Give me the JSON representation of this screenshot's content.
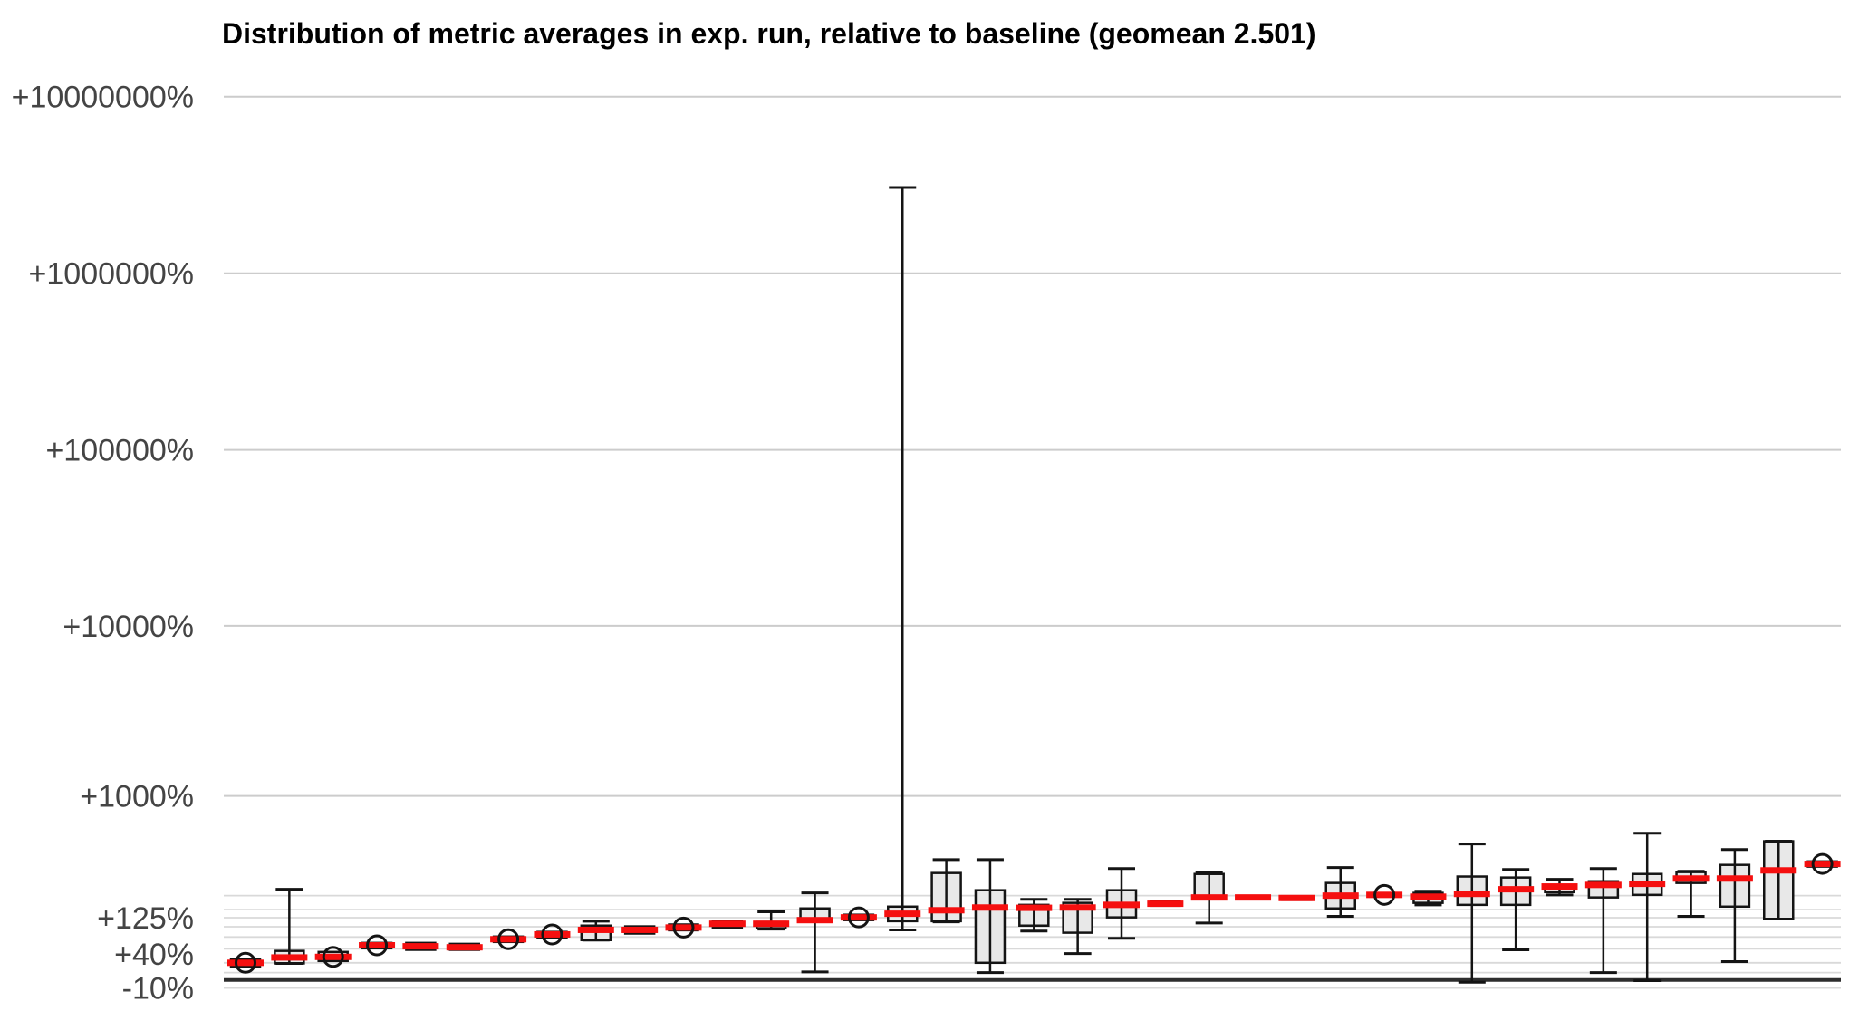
{
  "chart_data": {
    "type": "boxplot",
    "title": "Distribution of metric averages in exp. run, relative to baseline (geomean 2.501)",
    "geomean": 2.501,
    "y_axis": {
      "scale": "log10(1 + pct/100)",
      "unit": "percent change vs baseline",
      "ylim_pct": [
        -15,
        10000000
      ],
      "ticks": [
        {
          "label": "+10000000%",
          "pct": 10000000
        },
        {
          "label": "+1000000%",
          "pct": 1000000
        },
        {
          "label": "+100000%",
          "pct": 100000
        },
        {
          "label": "+10000%",
          "pct": 10000
        },
        {
          "label": "+1000%",
          "pct": 1000
        },
        {
          "label": "+125%",
          "pct": 125
        },
        {
          "label": "+40%",
          "pct": 40
        },
        {
          "label": "-10%",
          "pct": -10
        }
      ],
      "major_grid_pct": [
        10000000,
        1000000,
        100000,
        10000,
        1000
      ],
      "minor_grid_pct": [
        200,
        150,
        125,
        100,
        75,
        50,
        25,
        10,
        -10
      ],
      "baseline_pct": 0
    },
    "x_axis": {
      "labels_visible": false,
      "n_groups": 37
    },
    "series": [
      {
        "median_pct": 25,
        "q1_pct": 19,
        "q3_pct": 31,
        "lo_pct": null,
        "hi_pct": null,
        "circle": true
      },
      {
        "median_pct": 34,
        "q1_pct": 24,
        "q3_pct": 46,
        "lo_pct": 24,
        "hi_pct": 226,
        "circle": false
      },
      {
        "median_pct": 35,
        "q1_pct": 28,
        "q3_pct": 44,
        "lo_pct": null,
        "hi_pct": null,
        "circle": true
      },
      {
        "median_pct": 57,
        "q1_pct": 51,
        "q3_pct": 62,
        "lo_pct": null,
        "hi_pct": null,
        "circle": true
      },
      {
        "median_pct": 55,
        "q1_pct": 48,
        "q3_pct": 62,
        "lo_pct": null,
        "hi_pct": null,
        "circle": false
      },
      {
        "median_pct": 53,
        "q1_pct": 48,
        "q3_pct": 60,
        "lo_pct": null,
        "hi_pct": null,
        "circle": false
      },
      {
        "median_pct": 70,
        "q1_pct": 64,
        "q3_pct": 76,
        "lo_pct": null,
        "hi_pct": null,
        "circle": true
      },
      {
        "median_pct": 81,
        "q1_pct": 74,
        "q3_pct": 87,
        "lo_pct": null,
        "hi_pct": null,
        "circle": true
      },
      {
        "median_pct": 92,
        "q1_pct": 68,
        "q3_pct": 103,
        "lo_pct": 68,
        "hi_pct": 115,
        "circle": false
      },
      {
        "median_pct": 92,
        "q1_pct": 83,
        "q3_pct": 101,
        "lo_pct": null,
        "hi_pct": null,
        "circle": false
      },
      {
        "median_pct": 98,
        "q1_pct": 91,
        "q3_pct": 106,
        "lo_pct": null,
        "hi_pct": null,
        "circle": true
      },
      {
        "median_pct": 108,
        "q1_pct": 98,
        "q3_pct": 115,
        "lo_pct": null,
        "hi_pct": null,
        "circle": false
      },
      {
        "median_pct": 108,
        "q1_pct": 96,
        "q3_pct": 113,
        "lo_pct": 94,
        "hi_pct": 143,
        "circle": false
      },
      {
        "median_pct": 118,
        "q1_pct": 113,
        "q3_pct": 154,
        "lo_pct": 11,
        "hi_pct": 211,
        "circle": false
      },
      {
        "median_pct": 126,
        "q1_pct": 118,
        "q3_pct": 134,
        "lo_pct": null,
        "hi_pct": null,
        "circle": true
      },
      {
        "median_pct": 137,
        "q1_pct": 115,
        "q3_pct": 160,
        "lo_pct": 92,
        "hi_pct": 3060000,
        "circle": false
      },
      {
        "median_pct": 148,
        "q1_pct": 115,
        "q3_pct": 303,
        "lo_pct": 113,
        "hi_pct": 380,
        "circle": false
      },
      {
        "median_pct": 157,
        "q1_pct": 25,
        "q3_pct": 222,
        "lo_pct": 10,
        "hi_pct": 380,
        "circle": false
      },
      {
        "median_pct": 156,
        "q1_pct": 103,
        "q3_pct": 166,
        "lo_pct": 89,
        "hi_pct": 186,
        "circle": false
      },
      {
        "median_pct": 157,
        "q1_pct": 85,
        "q3_pct": 173,
        "lo_pct": 41,
        "hi_pct": 186,
        "circle": false
      },
      {
        "median_pct": 166,
        "q1_pct": 126,
        "q3_pct": 222,
        "lo_pct": 72,
        "hi_pct": 327,
        "circle": false
      },
      {
        "median_pct": 170,
        "q1_pct": 163,
        "q3_pct": 179,
        "lo_pct": null,
        "hi_pct": null,
        "circle": false
      },
      {
        "median_pct": 193,
        "q1_pct": 186,
        "q3_pct": 298,
        "lo_pct": 110,
        "hi_pct": 308,
        "circle": false
      },
      {
        "median_pct": 193,
        "q1_pct": 187,
        "q3_pct": 199,
        "lo_pct": null,
        "hi_pct": null,
        "circle": false
      },
      {
        "median_pct": 191,
        "q1_pct": 184,
        "q3_pct": 198,
        "lo_pct": null,
        "hi_pct": null,
        "circle": false
      },
      {
        "median_pct": 200,
        "q1_pct": 154,
        "q3_pct": 254,
        "lo_pct": 129,
        "hi_pct": 333,
        "circle": false
      },
      {
        "median_pct": 203,
        "q1_pct": 196,
        "q3_pct": 210,
        "lo_pct": null,
        "hi_pct": null,
        "circle": true
      },
      {
        "median_pct": 196,
        "q1_pct": 173,
        "q3_pct": 211,
        "lo_pct": 166,
        "hi_pct": 218,
        "circle": false
      },
      {
        "median_pct": 207,
        "q1_pct": 166,
        "q3_pct": 285,
        "lo_pct": -3,
        "hi_pct": 488,
        "circle": false
      },
      {
        "median_pct": 226,
        "q1_pct": 166,
        "q3_pct": 280,
        "lo_pct": 48,
        "hi_pct": 322,
        "circle": false
      },
      {
        "median_pct": 238,
        "q1_pct": 214,
        "q3_pct": 245,
        "lo_pct": 203,
        "hi_pct": 271,
        "circle": false
      },
      {
        "median_pct": 245,
        "q1_pct": 193,
        "q3_pct": 262,
        "lo_pct": 10,
        "hi_pct": 327,
        "circle": false
      },
      {
        "median_pct": 250,
        "q1_pct": 203,
        "q3_pct": 298,
        "lo_pct": -1,
        "hi_pct": 577,
        "circle": false
      },
      {
        "median_pct": 275,
        "q1_pct": 254,
        "q3_pct": 308,
        "lo_pct": 129,
        "hi_pct": 312,
        "circle": false
      },
      {
        "median_pct": 275,
        "q1_pct": 160,
        "q3_pct": 348,
        "lo_pct": 27,
        "hi_pct": 447,
        "circle": false
      },
      {
        "median_pct": 317,
        "q1_pct": 121,
        "q3_pct": 510,
        "lo_pct": 121,
        "hi_pct": 510,
        "circle": false
      },
      {
        "median_pct": 354,
        "q1_pct": 338,
        "q3_pct": 369,
        "lo_pct": null,
        "hi_pct": null,
        "circle": true
      }
    ]
  },
  "colors": {
    "median": "#f50f0f",
    "box_fill": "#e8e8e8",
    "box_stroke": "#141414",
    "whisker": "#141414",
    "grid_major": "#cccccc",
    "grid_minor": "#d9d9d9",
    "baseline": "#2d2d2d",
    "tick_label": "#444444",
    "title": "#000000"
  }
}
